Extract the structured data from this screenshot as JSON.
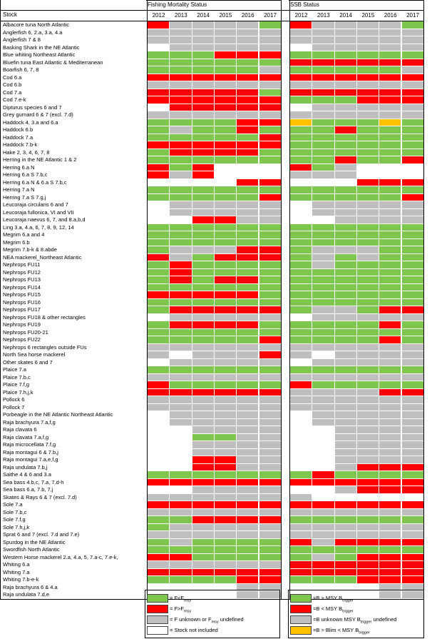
{
  "headers": {
    "stock": "Stock",
    "fishing": "Fishing Mortality Status",
    "ssb": "SSB Status",
    "years": [
      "2012",
      "2013",
      "2014",
      "2015",
      "2016",
      "2017"
    ]
  },
  "colors": {
    "G": "#7fc64e",
    "R": "#ff0000",
    "U": "#bfbfbf",
    "W": "#ffffff",
    "O": "#ffc000"
  },
  "stocks": [
    {
      "name": "Albacore tuna North Atlantic",
      "f": "RUUUUG",
      "s": "RUUUUG"
    },
    {
      "name": "Anglerfish 6, 2.a, 3.a, 4.a",
      "f": "UUUUUU",
      "s": "UUUUUU"
    },
    {
      "name": "Anglerfish 7 & 8",
      "f": "UUUUUU",
      "s": "UUUUUU"
    },
    {
      "name": "Basking Shark in the NE Atlantic",
      "f": "WUUUUU",
      "s": "WUUUUU"
    },
    {
      "name": "Blue whiting Northeast Atlantic",
      "f": "GGGRRR",
      "s": "GGGGGG"
    },
    {
      "name": "Bluefin tuna East Atlantic & Mediterranean",
      "f": "GGGGGG",
      "s": "RRRRRR"
    },
    {
      "name": "Boarfish 6, 7, 8",
      "f": "GGGGGU",
      "s": "GGGGGU"
    },
    {
      "name": "Cod 6.a",
      "f": "RRRRRR",
      "s": "RRRRRR"
    },
    {
      "name": "Cod 6.b",
      "f": "UUUUUU",
      "s": "UUUUUU"
    },
    {
      "name": "Cod 7.a",
      "f": "RRRRRG",
      "s": "RRRRRR"
    },
    {
      "name": "Cod 7.e-k",
      "f": "RRRRRR",
      "s": "GGGRRR"
    },
    {
      "name": "Dipturus species 6 and 7",
      "f": "WRRRRR",
      "s": "WUUUUU"
    },
    {
      "name": "Grey gurnard 6 & 7 (excl. 7.d)",
      "f": "UUUUUU",
      "s": "UUUUUU"
    },
    {
      "name": "Haddock 4, 3.a and 6.a",
      "f": "GGGGRR",
      "s": "OGGGOG"
    },
    {
      "name": "Haddock 6.b",
      "f": "GUGGRG",
      "s": "GGRGGG"
    },
    {
      "name": "Haddock 7.a",
      "f": "GGGGGR",
      "s": "GGGGGG"
    },
    {
      "name": "Haddock 7.b-k",
      "f": "RRRRRR",
      "s": "GGGGGG"
    },
    {
      "name": "Hake 2, 3, 4, 6, 7, 8",
      "f": "GRRRRG",
      "s": "GGGGGG"
    },
    {
      "name": "Herring in the NE Atlantic 1 & 2",
      "f": "GGGGGG",
      "s": "GGRGGR"
    },
    {
      "name": "Herring 6.a N",
      "f": "RGRWWW",
      "s": "RGUWWW"
    },
    {
      "name": "Herring 6.a S 7.b,c",
      "f": "RURWWW",
      "s": "UUUWWW"
    },
    {
      "name": "Herring 6.a N & 6.a S 7.b,c",
      "f": "WWWWRR",
      "s": "WWWRRR"
    },
    {
      "name": "Herring 7.a N",
      "f": "GGGGGG",
      "s": "GGGGGG"
    },
    {
      "name": "Herring 7.a S 7.g,j",
      "f": "GGGGGR",
      "s": "GGGGGR"
    },
    {
      "name": "Leucoraja circularis 6 and 7",
      "f": "WUUUUU",
      "s": "WUUUUU"
    },
    {
      "name": "Leucoraja fullonica, VI and VII",
      "f": "WUUUUU",
      "s": "WUUUUU"
    },
    {
      "name": "Leucoraja naevus 6, 7, and 8.a,b,d",
      "f": "WWRRUU",
      "s": "WWUUUU"
    },
    {
      "name": "Ling 3.a, 4.a, 6, 7, 8, 9, 12, 14",
      "f": "GGGGGG",
      "s": "GGGGGG"
    },
    {
      "name": "Megrim 6.a and 4",
      "f": "GGGGGG",
      "s": "GGGGGG"
    },
    {
      "name": "Megrim 6.b",
      "f": "GGGGGG",
      "s": "GGGGGG"
    },
    {
      "name": "Megrim 7.b-k & 8.abde",
      "f": "GUUURR",
      "s": "GUUUGG"
    },
    {
      "name": "NEA mackerel_Northeast Atlantic",
      "f": "RUGRRR",
      "s": "GUGUGG"
    },
    {
      "name": "Nephrops FU11",
      "f": "GRGGGG",
      "s": "GUGGGG"
    },
    {
      "name": "Nephrops FU12",
      "f": "GRGGGG",
      "s": "GGGGGG"
    },
    {
      "name": "Nephrops FU13",
      "f": "GRGRRG",
      "s": "GGGGGG"
    },
    {
      "name": "Nephrops FU14",
      "f": "GGGGGG",
      "s": "GGGGGG"
    },
    {
      "name": "Nephrops FU15",
      "f": "RRRRRG",
      "s": "GGGGGG"
    },
    {
      "name": "Nephrops FU16",
      "f": "GGGGGG",
      "s": "GGGGGG"
    },
    {
      "name": "Nephrops FU17",
      "f": "GRRRRR",
      "s": "GUUGRR"
    },
    {
      "name": "Nephrops FU18 & other rectangles",
      "f": "WUUUUU",
      "s": "WUUUUU"
    },
    {
      "name": "Nephrops FU19",
      "f": "GRRRRG",
      "s": "GGGGRG"
    },
    {
      "name": "Nephrops FU20-21",
      "f": "GGGGGG",
      "s": "GGGGGG"
    },
    {
      "name": "Nephrops FU22",
      "f": "GGGGGR",
      "s": "GGGGRG"
    },
    {
      "name": "Nephrops 6 rectangles outside FUs",
      "f": "UUUUUU",
      "s": "UUUUUU"
    },
    {
      "name": "North Sea horse mackerel",
      "f": "UWUUUR",
      "s": "UWUUUU"
    },
    {
      "name": "Other skates 6 and 7",
      "f": "WUUUUU",
      "s": "WUUUUU"
    },
    {
      "name": "Plaice 7.a",
      "f": "GGGGGG",
      "s": "GGGGGG"
    },
    {
      "name": "Plaice 7.b,c",
      "f": "UUUUUU",
      "s": "UUUUUU"
    },
    {
      "name": "Plaice 7.f,g",
      "f": "RGGGGG",
      "s": "RGGGGG"
    },
    {
      "name": "Plaice 7.h,j,k",
      "f": "RRRRRR",
      "s": "UUUURR"
    },
    {
      "name": "Pollock 6",
      "f": "UUUUUU",
      "s": "UUUUUU"
    },
    {
      "name": "Pollock 7",
      "f": "UUUUUU",
      "s": "UUUUUU"
    },
    {
      "name": "Porbeagle in the NE Atlantic Northeast Atlantic",
      "f": "WUUUUU",
      "s": "WUUUUU"
    },
    {
      "name": "Raja brachyura 7.a,f,g",
      "f": "WUUUUU",
      "s": "WUUUUU"
    },
    {
      "name": "Raja clavata 6",
      "f": "WWUUUU",
      "s": "WWUUUU"
    },
    {
      "name": "Raja clavata 7.a,f,g",
      "f": "WWGGUU",
      "s": "WWUUUU"
    },
    {
      "name": "Raja microcellata 7.f,g",
      "f": "WWUUUU",
      "s": "WWUUUU"
    },
    {
      "name": "Raja montagui 6 & 7.b,j",
      "f": "WWUUUU",
      "s": "WWUUUU"
    },
    {
      "name": "Raja montagui 7.a,e,f,g",
      "f": "WWRRUU",
      "s": "WWUUUU"
    },
    {
      "name": "Raja undulata 7.b,j",
      "f": "WWRRUU",
      "s": "WWURRR"
    },
    {
      "name": "Saithe 4 & 6 and 3.a",
      "f": "GGGGGG",
      "s": "GRGGGG"
    },
    {
      "name": "Sea bass 4.b,c, 7.a, 7.d-h",
      "f": "RRRRRR",
      "s": "RRRRRR"
    },
    {
      "name": "Sea bass 6.a, 7.b, 7,j",
      "f": "WWUUUU",
      "s": "WWURRR"
    },
    {
      "name": "Skates & Rays 6 & 7 (excl. 7.d)",
      "f": "UUUUUU",
      "s": "UWWWWW"
    },
    {
      "name": "Sole 7.a",
      "f": "RRRRRR",
      "s": "RRRRRR"
    },
    {
      "name": "Sole 7.b,c",
      "f": "UUUUUU",
      "s": "UUUUUU"
    },
    {
      "name": "Sole 7.f,g",
      "f": "GGRRRR",
      "s": "GGGGGG"
    },
    {
      "name": "Sole 7.h,j,k",
      "f": "GUUUUU",
      "s": "UUUUUU"
    },
    {
      "name": "Sprat 6 and 7 (excl. 7.d and 7.e)",
      "f": "UUUUUU",
      "s": "UUUUUU"
    },
    {
      "name": "Spurdog in the NE Atlantic",
      "f": "GUGGGG",
      "s": "RURRRR"
    },
    {
      "name": "Swordfish North Atlantic",
      "f": "GGGGGG",
      "s": "GGGGGG"
    },
    {
      "name": "Western Horse mackerel 2.a, 4.a, 5, 7.a-c, 7.e-k,",
      "f": "RRGGGG",
      "s": "GUGRRR"
    },
    {
      "name": "Whiting 6.a",
      "f": "UUUUUU",
      "s": "RRRRRR"
    },
    {
      "name": "Whiting 7.a",
      "f": "RRRRRR",
      "s": "RRRRRR"
    },
    {
      "name": "Whiting 7.b-e-k",
      "f": "GGGGRR",
      "s": "GGGRRR"
    },
    {
      "name": "Raja brachyura 6 & 4.a",
      "f": "WWWWUU",
      "s": "WWWWUU"
    },
    {
      "name": "Raja undulata 7.d,e",
      "f": "WWWWUU",
      "s": "WWWWUU"
    }
  ],
  "legend_fishing": [
    {
      "key": "G",
      "text": "= F<F",
      "sub": "msy",
      "tail": ""
    },
    {
      "key": "R",
      "text": "= F>F",
      "sub": "msy",
      "tail": ""
    },
    {
      "key": "U",
      "text": "= F unknown or F",
      "sub": "msy",
      "tail": " undefined"
    },
    {
      "key": "W",
      "text": "= Stock not included",
      "sub": "",
      "tail": ""
    }
  ],
  "legend_ssb": [
    {
      "key": "G",
      "text": "=B > MSY B",
      "sub": "trigger",
      "tail": ""
    },
    {
      "key": "R",
      "text": "=B < MSY B",
      "sub": "trigger",
      "tail": ""
    },
    {
      "key": "U",
      "text": "=B unknown MSY B",
      "sub": "trigger",
      "tail": " undefined"
    },
    {
      "key": "O",
      "text": "=B > Blim < MSY B",
      "sub": "trigger",
      "tail": ""
    }
  ]
}
